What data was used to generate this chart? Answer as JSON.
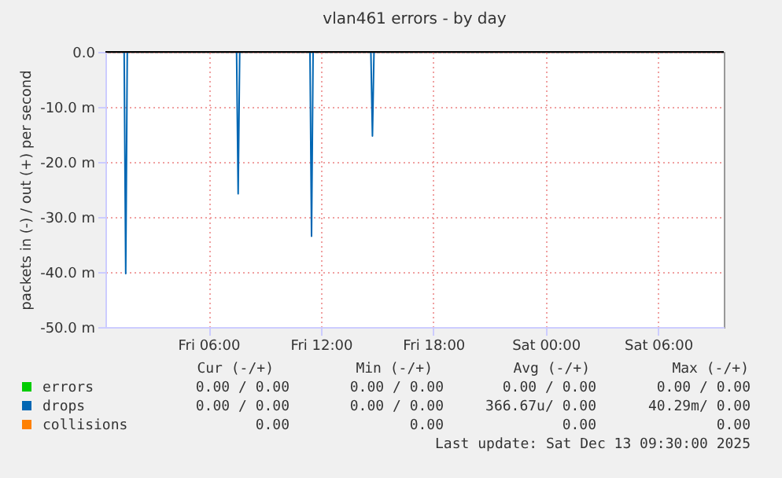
{
  "chart_data": {
    "type": "line",
    "title": "vlan461 errors - by day",
    "ylabel": "packets in (-) / out (+) per second",
    "xlim": [
      "2025-12-12T00:30",
      "2025-12-13T09:30"
    ],
    "xticks": [
      {
        "value": "2025-12-12T06:00",
        "label": "Fri 06:00"
      },
      {
        "value": "2025-12-12T12:00",
        "label": "Fri 12:00"
      },
      {
        "value": "2025-12-12T18:00",
        "label": "Fri 18:00"
      },
      {
        "value": "2025-12-13T00:00",
        "label": "Sat 00:00"
      },
      {
        "value": "2025-12-13T06:00",
        "label": "Sat 06:00"
      }
    ],
    "ylim": [
      -50,
      0
    ],
    "yticks": [
      {
        "value": -50,
        "label": "-50.0 m"
      },
      {
        "value": -40,
        "label": "-40.0 m"
      },
      {
        "value": -30,
        "label": "-30.0 m"
      },
      {
        "value": -20,
        "label": "-20.0 m"
      },
      {
        "value": -10,
        "label": "-10.0 m"
      },
      {
        "value": 0,
        "label": "0.0"
      }
    ],
    "series": [
      {
        "name": "drops",
        "color": "#0066b3",
        "x": [
          "2025-12-12T01:30",
          "2025-12-12T01:35",
          "2025-12-12T01:40",
          "2025-12-12T07:30",
          "2025-12-12T07:35",
          "2025-12-12T07:40",
          "2025-12-12T11:25",
          "2025-12-12T11:30",
          "2025-12-12T11:35",
          "2025-12-12T14:40",
          "2025-12-12T14:45",
          "2025-12-12T14:50"
        ],
        "values": [
          0,
          -40.3,
          0,
          0,
          -25.8,
          0,
          0,
          -33.5,
          0,
          0,
          -15.3,
          0
        ]
      },
      {
        "name": "errors",
        "color": "#00cc00"
      },
      {
        "name": "collisions",
        "color": "#ff8000"
      }
    ],
    "ref_lines": [
      {
        "axis": "y",
        "value": 0,
        "color": "#000000"
      }
    ],
    "grid": true,
    "legend": "bottom",
    "annotations": [
      "Cur (-/+)",
      "Min (-/+)",
      "Avg (-/+)",
      "Max (-/+)",
      "0.00 / 0.00",
      "0.00 / 0.00",
      "0.00 / 0.00",
      "0.00 / 0.00",
      "0.00 / 0.00",
      "0.00 / 0.00",
      "366.67u/ 0.00",
      "40.29m/ 0.00",
      "0.00",
      "0.00",
      "0.00",
      "0.00",
      "Last update: Sat Dec 13 09:30:00 2025"
    ]
  }
}
